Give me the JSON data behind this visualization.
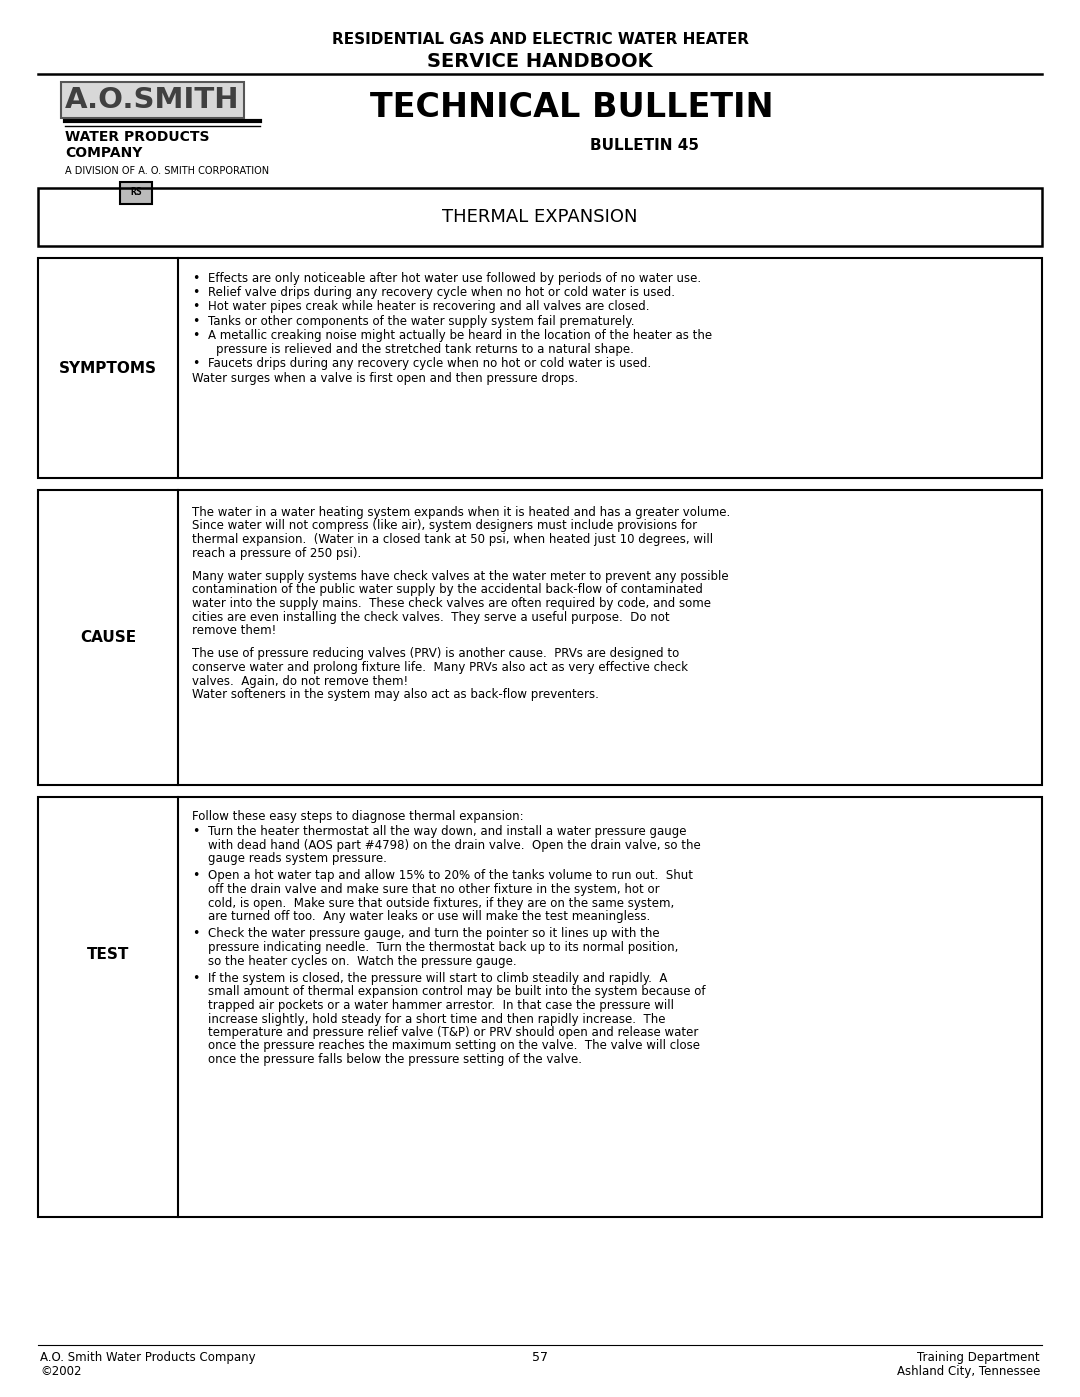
{
  "page_title_line1": "RESIDENTIAL GAS AND ELECTRIC WATER HEATER",
  "page_title_line2": "SERVICE HANDBOOK",
  "bulletin_title": "TECHNICAL BULLETIN",
  "bulletin_number": "BULLETIN 45",
  "division_text": "A DIVISION OF A. O. SMITH CORPORATION",
  "section_title": "THERMAL EXPANSION",
  "symptoms_label": "SYMPTOMS",
  "symptoms_bullets": [
    "Effects are only noticeable after hot water use followed by periods of no water use.",
    "Relief valve drips during any recovery cycle when no hot or cold water is used.",
    "Hot water pipes creak while heater is recovering and all valves are closed.",
    "Tanks or other components of the water supply system fail prematurely.",
    "A metallic creaking noise might actually be heard in the location of the heater as the",
    "    pressure is relieved and the stretched tank returns to a natural shape.",
    "Faucets drips during any recovery cycle when no hot or cold water is used."
  ],
  "symptoms_bullet_flags": [
    true,
    true,
    true,
    true,
    true,
    false,
    true
  ],
  "symptoms_extra": "Water surges when a valve is first open and then pressure drops.",
  "cause_label": "CAUSE",
  "cause_paragraphs": [
    "The water in a water heating system expands when it is heated and has a greater volume.  Since water will not compress (like air), system designers must include provisions for thermal expansion.  (Water in a closed tank at 50 psi, when heated just 10 degrees, will reach a pressure of 250 psi).",
    "Many water supply systems have check valves at the water meter to prevent any possible contamination of the public water supply by the accidental back-flow of contaminated water into the supply mains.  These check valves are often required by code, and some cities are even installing the check valves.  They serve a useful purpose.  Do not remove them!",
    "The use of pressure reducing valves (PRV) is another cause.  PRVs are designed to conserve water and prolong fixture life.  Many PRVs also act as very effective check valves.  Again, do not remove them!\nWater softeners in the system may also act as back-flow preventers."
  ],
  "test_label": "TEST",
  "test_intro": "Follow these easy steps to diagnose thermal expansion:",
  "test_bullets": [
    "Turn the heater thermostat all the way down, and install a water pressure gauge with dead hand (AOS part #4798) on the drain valve.  Open the drain valve, so the gauge reads system pressure.",
    "Open a hot water tap and allow 15% to 20% of the tanks volume to run out.  Shut off the drain valve and make sure that no other fixture in the system, hot or cold, is open.  Make sure that outside fixtures, if they are on the same system, are turned off too.  Any water leaks or use will make the test meaningless.",
    "Check the water pressure gauge, and turn the pointer so it lines up with the pressure indicating needle.  Turn the thermostat back up to its normal position, so the heater cycles on.  Watch the pressure gauge.",
    "If the system is closed, the pressure will start to climb steadily and rapidly.  A small amount of thermal expansion control may be built into the system because of trapped air pockets or a water hammer arrestor.  In that case the pressure will increase slightly, hold steady for a short time and then rapidly increase.  The temperature and pressure relief valve (T&P) or PRV should open and release water once the pressure reaches the maximum setting on the valve.  The valve will close once the pressure falls below the pressure setting of the valve."
  ],
  "footer_left1": "A.O. Smith Water Products Company",
  "footer_left2": "©2002",
  "footer_center": "57",
  "footer_right1": "Training Department",
  "footer_right2": "Ashland City, Tennessee",
  "bg_color": "#ffffff",
  "text_color": "#000000"
}
